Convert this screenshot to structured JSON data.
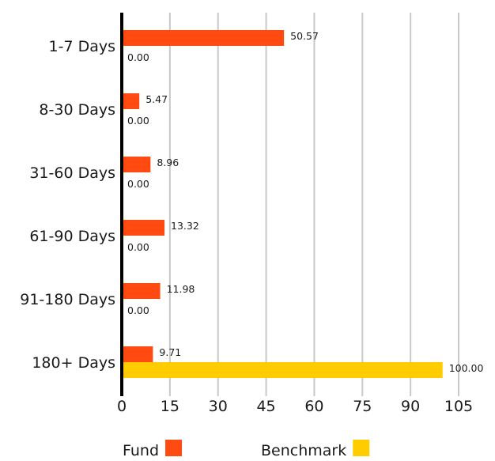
{
  "chart_data": {
    "type": "bar",
    "orientation": "horizontal",
    "categories": [
      "1-7 Days",
      "8-30 Days",
      "31-60 Days",
      "61-90 Days",
      "91-180 Days",
      "180+ Days"
    ],
    "series": [
      {
        "name": "Fund",
        "color": "#ff4b12",
        "values": [
          50.57,
          5.47,
          8.96,
          13.32,
          11.98,
          9.71
        ],
        "labels": [
          "50.57",
          "5.47",
          "8.96",
          "13.32",
          "11.98",
          "9.71"
        ]
      },
      {
        "name": "Benchmark",
        "color": "#ffcc00",
        "values": [
          0,
          0,
          0,
          0,
          0,
          100
        ],
        "labels": [
          "0.00",
          "0.00",
          "0.00",
          "0.00",
          "0.00",
          "100.00"
        ]
      }
    ],
    "xlim": [
      0,
      105
    ],
    "xticks": [
      0,
      15,
      30,
      45,
      60,
      75,
      90,
      105
    ],
    "xtick_labels": [
      "0",
      "15",
      "30",
      "45",
      "60",
      "75",
      "90",
      "105"
    ],
    "grid": true,
    "grid_color": "#c8c8c8",
    "axis_color": "#000000",
    "legend_position": "bottom"
  }
}
